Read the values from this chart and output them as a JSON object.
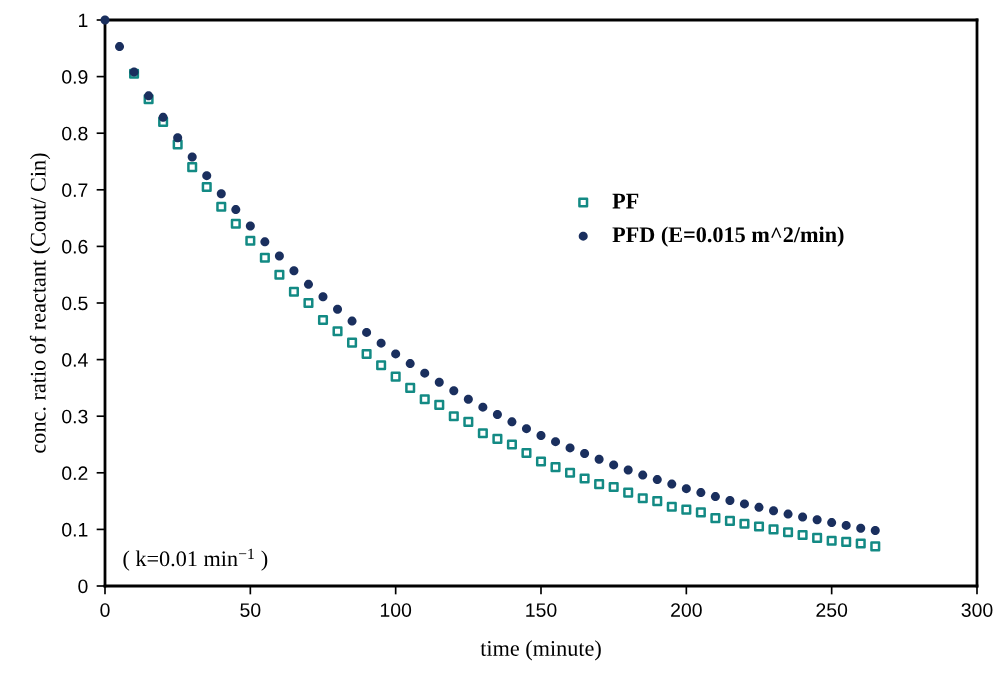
{
  "chart_data": {
    "type": "scatter",
    "xlabel": "time (minute)",
    "ylabel": "conc. ratio of reactant (Cout/ Cin)",
    "annotations": [
      "( k=0.01 min$^{−1}$ )"
    ],
    "x": [
      0,
      5,
      10,
      15,
      20,
      25,
      30,
      35,
      40,
      45,
      50,
      55,
      60,
      65,
      70,
      75,
      80,
      85,
      90,
      95,
      100,
      105,
      110,
      115,
      120,
      125,
      130,
      135,
      140,
      145,
      150,
      155,
      160,
      165,
      170,
      175,
      180,
      185,
      190,
      195,
      200,
      205,
      210,
      215,
      220,
      225,
      230,
      235,
      240,
      245,
      250,
      255,
      260,
      265
    ],
    "series": [
      {
        "name": "PF",
        "color": "#138a84",
        "marker": "square",
        "values": [
          null,
          null,
          0.905,
          0.86,
          0.82,
          0.78,
          0.74,
          0.705,
          0.67,
          0.64,
          0.61,
          0.58,
          0.55,
          0.52,
          0.5,
          0.47,
          0.45,
          0.43,
          0.41,
          0.39,
          0.37,
          0.35,
          0.33,
          0.32,
          0.3,
          0.29,
          0.27,
          0.26,
          0.25,
          0.235,
          0.22,
          0.21,
          0.2,
          0.19,
          0.18,
          0.175,
          0.165,
          0.155,
          0.15,
          0.14,
          0.135,
          0.13,
          0.12,
          0.115,
          0.11,
          0.105,
          0.1,
          0.095,
          0.09,
          0.085,
          0.08,
          0.078,
          0.075,
          0.07
        ]
      },
      {
        "name": "PFD (E=0.015 m^2/min)",
        "color": "#1a2f5e",
        "marker": "circle",
        "values": [
          1.0,
          0.953,
          0.908,
          0.866,
          0.828,
          0.792,
          0.758,
          0.725,
          0.693,
          0.665,
          0.636,
          0.608,
          0.583,
          0.557,
          0.533,
          0.511,
          0.489,
          0.468,
          0.448,
          0.429,
          0.41,
          0.393,
          0.376,
          0.36,
          0.345,
          0.33,
          0.316,
          0.303,
          0.29,
          0.278,
          0.266,
          0.255,
          0.244,
          0.234,
          0.224,
          0.214,
          0.205,
          0.196,
          0.188,
          0.18,
          0.172,
          0.165,
          0.158,
          0.151,
          0.145,
          0.139,
          0.133,
          0.127,
          0.122,
          0.117,
          0.112,
          0.107,
          0.102,
          0.098
        ]
      }
    ],
    "xlim": [
      0,
      300
    ],
    "xticks": [
      0,
      50,
      100,
      150,
      200,
      250,
      300
    ],
    "ylim": [
      0,
      1
    ],
    "yticks": [
      0,
      0.1,
      0.2,
      0.3,
      0.4,
      0.5,
      0.6,
      0.7,
      0.8,
      0.9,
      1
    ],
    "grid": false,
    "legend": "right"
  }
}
